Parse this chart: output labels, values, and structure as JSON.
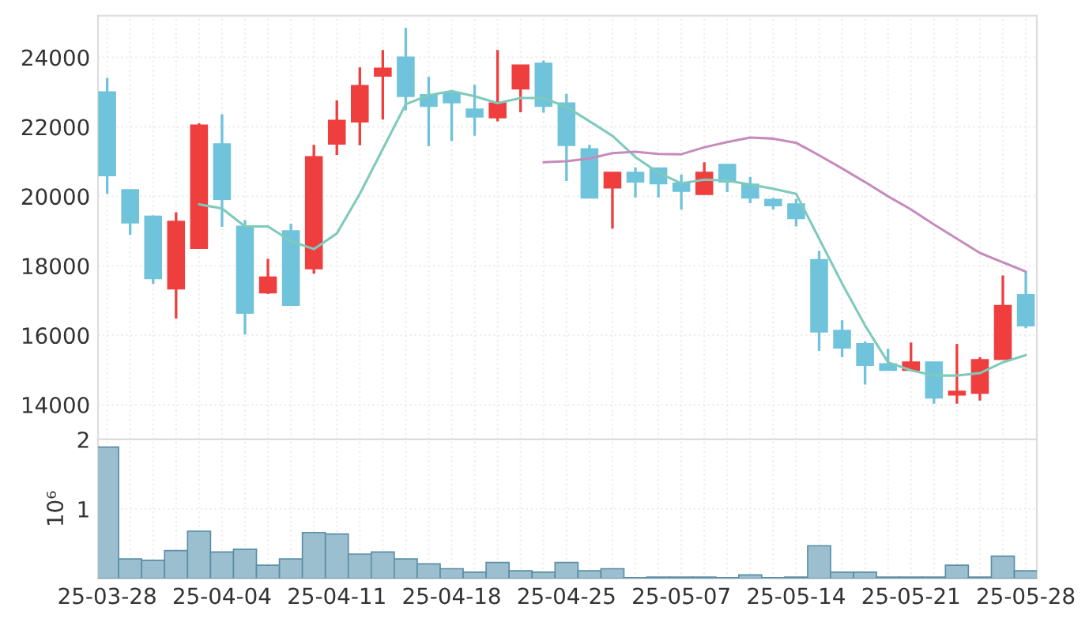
{
  "chart_data": [
    {
      "type": "candlestick",
      "categories": [
        null,
        null,
        null,
        null,
        null,
        null,
        null,
        null,
        null,
        null,
        null,
        null,
        null,
        null,
        null,
        null,
        null,
        null,
        null,
        null,
        null,
        null,
        null,
        null,
        null,
        null,
        null,
        null,
        null,
        null,
        null,
        null,
        null,
        null,
        null,
        null,
        null,
        null,
        null,
        null,
        null
      ],
      "ohlc": [
        [
          23000,
          23410,
          20070,
          20600
        ],
        [
          20180,
          20180,
          18890,
          19240
        ],
        [
          19420,
          19450,
          17480,
          17640
        ],
        [
          17340,
          19540,
          16480,
          19270
        ],
        [
          18510,
          22100,
          18510,
          22040
        ],
        [
          21500,
          22360,
          19120,
          19920
        ],
        [
          19130,
          19310,
          16020,
          16640
        ],
        [
          17230,
          18200,
          17190,
          17670
        ],
        [
          19000,
          19210,
          16870,
          16870
        ],
        [
          17920,
          21480,
          17770,
          21130
        ],
        [
          21510,
          22760,
          21190,
          22180
        ],
        [
          22150,
          23710,
          21470,
          23180
        ],
        [
          23470,
          24210,
          22210,
          23680
        ],
        [
          24000,
          24850,
          22470,
          22880
        ],
        [
          22920,
          23440,
          21440,
          22600
        ],
        [
          22980,
          23030,
          21590,
          22700
        ],
        [
          22500,
          23210,
          21740,
          22290
        ],
        [
          22270,
          24210,
          22160,
          22680
        ],
        [
          23100,
          23770,
          22420,
          23770
        ],
        [
          23820,
          23910,
          22410,
          22600
        ],
        [
          22680,
          22950,
          20440,
          21470
        ],
        [
          21360,
          21480,
          19960,
          19960
        ],
        [
          20250,
          20680,
          19070,
          20680
        ],
        [
          20680,
          20830,
          19960,
          20420
        ],
        [
          20810,
          20810,
          19960,
          20370
        ],
        [
          20370,
          20630,
          19620,
          20150
        ],
        [
          20060,
          20980,
          20060,
          20680
        ],
        [
          20910,
          20910,
          20120,
          20420
        ],
        [
          20340,
          20560,
          19800,
          19960
        ],
        [
          19900,
          19950,
          19620,
          19740
        ],
        [
          19770,
          19920,
          19130,
          19370
        ],
        [
          18170,
          18430,
          15550,
          16100
        ],
        [
          16130,
          16430,
          15370,
          15640
        ],
        [
          15750,
          15820,
          14580,
          15140
        ],
        [
          15170,
          15610,
          15000,
          15000
        ],
        [
          15000,
          15790,
          15000,
          15220
        ],
        [
          15220,
          15220,
          14030,
          14200
        ],
        [
          14290,
          15750,
          14030,
          14380
        ],
        [
          14340,
          15370,
          14120,
          15290
        ],
        [
          15310,
          17720,
          15310,
          16850
        ],
        [
          17160,
          17820,
          16200,
          16280
        ]
      ],
      "colors": [
        "#6fc3db",
        "#6fc3db",
        "#6fc3db",
        "#ef3e3e",
        "#ef3e3e",
        "#6fc3db",
        "#6fc3db",
        "#ef3e3e",
        "#6fc3db",
        "#ef3e3e",
        "#ef3e3e",
        "#ef3e3e",
        "#ef3e3e",
        "#6fc3db",
        "#6fc3db",
        "#6fc3db",
        "#6fc3db",
        "#ef3e3e",
        "#ef3e3e",
        "#6fc3db",
        "#6fc3db",
        "#6fc3db",
        "#ef3e3e",
        "#6fc3db",
        "#6fc3db",
        "#6fc3db",
        "#ef3e3e",
        "#6fc3db",
        "#6fc3db",
        "#6fc3db",
        "#6fc3db",
        "#6fc3db",
        "#6fc3db",
        "#6fc3db",
        "#6fc3db",
        "#ef3e3e",
        "#6fc3db",
        "#ef3e3e",
        "#ef3e3e",
        "#ef3e3e",
        "#6fc3db"
      ],
      "series": [
        {
          "type": "line",
          "color": "#7fcabb",
          "values": [
            null,
            null,
            null,
            null,
            19770,
            19650,
            19130,
            19130,
            18710,
            18480,
            18930,
            20070,
            21360,
            22650,
            22910,
            23030,
            22880,
            22680,
            22830,
            22830,
            22570,
            22160,
            21740,
            21130,
            20680,
            20370,
            20480,
            20450,
            20340,
            20220,
            20070,
            18780,
            17490,
            16280,
            15220,
            14990,
            14840,
            14840,
            14910,
            15220,
            15430
          ]
        },
        {
          "type": "line",
          "color": "#c58bbd",
          "values": [
            null,
            null,
            null,
            null,
            null,
            null,
            null,
            null,
            null,
            null,
            null,
            null,
            null,
            null,
            null,
            null,
            null,
            null,
            null,
            20980,
            21010,
            21090,
            21240,
            21280,
            21220,
            21210,
            21410,
            21560,
            21690,
            21660,
            21540,
            21180,
            20800,
            20410,
            20000,
            19620,
            19190,
            18780,
            18370,
            18100,
            17830
          ]
        }
      ],
      "ylim": [
        13000,
        25200
      ],
      "yticks": [
        14000,
        16000,
        18000,
        20000,
        22000,
        24000
      ],
      "grid": true,
      "tick_labels": "y"
    },
    {
      "type": "bar",
      "categories": [
        "25-03-28",
        null,
        null,
        null,
        null,
        "25-04-04",
        null,
        null,
        null,
        null,
        "25-04-11",
        null,
        null,
        null,
        null,
        "25-04-18",
        null,
        null,
        null,
        null,
        "25-04-25",
        null,
        null,
        null,
        null,
        "25-05-07",
        null,
        null,
        null,
        null,
        "25-05-14",
        null,
        null,
        null,
        null,
        "25-05-21",
        null,
        null,
        null,
        null,
        "25-05-28"
      ],
      "values": [
        1.89,
        0.28,
        0.26,
        0.4,
        0.68,
        0.38,
        0.42,
        0.19,
        0.28,
        0.66,
        0.64,
        0.35,
        0.38,
        0.28,
        0.21,
        0.14,
        0.09,
        0.23,
        0.11,
        0.09,
        0.23,
        0.11,
        0.14,
        0.01,
        0.02,
        0.02,
        0.02,
        0.01,
        0.05,
        0.01,
        0.02,
        0.47,
        0.09,
        0.09,
        0.02,
        0.02,
        0.02,
        0.19,
        0.02,
        0.32,
        0.11
      ],
      "color": "#9bbfcf",
      "ylabel": "10⁶",
      "ylim": [
        0,
        2
      ],
      "yticks": [
        1,
        2
      ],
      "grid": true
    }
  ]
}
